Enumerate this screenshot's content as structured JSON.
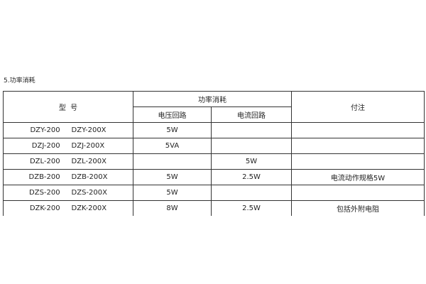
{
  "section_title": "5.功率消耗",
  "headers": {
    "model": "型  号",
    "power": "功率消耗",
    "voltage": "电压回路",
    "current": "电流回路",
    "note": "付注"
  },
  "rows": [
    {
      "model": "DZY-200     DZY-200X",
      "voltage": "5W",
      "current": "",
      "note": ""
    },
    {
      "model": "DZJ-200     DZJ-200X",
      "voltage": "5VA",
      "current": "",
      "note": ""
    },
    {
      "model": "DZL-200     DZL-200X",
      "voltage": "",
      "current": "5W",
      "note": ""
    },
    {
      "model": "DZB-200     DZB-200X",
      "voltage": "5W",
      "current": "2.5W",
      "note": "电流动作规格5W"
    },
    {
      "model": "DZS-200     DZS-200X",
      "voltage": "5W",
      "current": "",
      "note": ""
    },
    {
      "model": "DZK-200     DZK-200X",
      "voltage": "8W",
      "current": "2.5W",
      "note": "包括外附电阻"
    }
  ]
}
